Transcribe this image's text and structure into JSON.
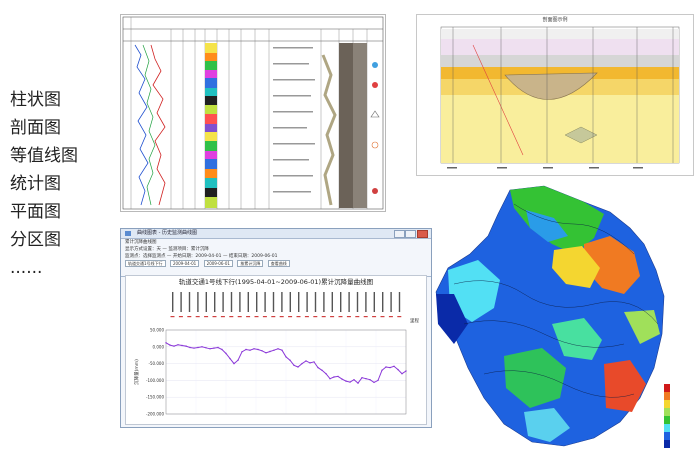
{
  "menu": {
    "items": [
      "柱状图",
      "剖面图",
      "等值线图",
      "统计图",
      "平面图",
      "分区图",
      "......"
    ]
  },
  "section_panel": {
    "title": "剖面图示例"
  },
  "window": {
    "title": "曲线图表 - 历史监测曲线图",
    "menu_label": "累计沉降曲线图",
    "tool_rows": [
      "显示方式设置：天 — 监测项目：累计沉降",
      "监测点：选择监测点 — 开始日期：2009-04-01 — 结束日期：2009-06-01"
    ],
    "controls": [
      "轨道交通1号线下行",
      "2009-04-01",
      "2009-06-01",
      "按累计沉降",
      "查看曲线"
    ],
    "tab_label": "曲线图",
    "chart_title": "轨道交通1号线下行(1995-04-01~2009-06-01)累计沉降量曲线图",
    "ylabel": "沉降量(mm)",
    "xlabel": "里程",
    "legend_small": [
      "显示"
    ]
  },
  "chart_data": {
    "type": "line",
    "title": "轨道交通1号线下行(1995-04-01~2009-06-01)累计沉降量曲线图",
    "xlabel": "里程",
    "ylabel": "沉降量(mm)",
    "ylim": [
      -200,
      50
    ],
    "yticks": [
      "50.000",
      "0.000",
      "-50.000",
      "-100.000",
      "-150.000",
      "-200.000"
    ],
    "x": [
      0,
      1,
      2,
      3,
      4,
      5,
      6,
      7,
      8,
      9,
      10,
      11,
      12,
      13,
      14,
      15,
      16,
      17,
      18,
      19,
      20,
      21,
      22,
      23,
      24,
      25,
      26,
      27,
      28,
      29,
      30,
      31,
      32,
      33,
      34,
      35,
      36,
      37,
      38,
      39,
      40,
      41,
      42,
      43,
      44,
      45,
      46,
      47,
      48,
      49,
      50,
      51,
      52,
      53,
      54,
      55,
      56,
      57,
      58,
      59,
      60
    ],
    "values": [
      12,
      5,
      2,
      6,
      4,
      2,
      -2,
      -4,
      -2,
      0,
      -3,
      -6,
      -4,
      -2,
      -8,
      -20,
      -35,
      -50,
      -40,
      -15,
      -8,
      -10,
      -6,
      -8,
      -12,
      -18,
      -14,
      -10,
      -6,
      -10,
      -30,
      -40,
      -55,
      -60,
      -50,
      -42,
      -48,
      -45,
      -62,
      -70,
      -80,
      -95,
      -90,
      -88,
      -96,
      -102,
      -105,
      -98,
      -108,
      -92,
      -95,
      -98,
      -106,
      -100,
      -70,
      -60,
      -62,
      -58,
      -68,
      -80,
      -72
    ]
  },
  "colors": {
    "line": "#8a37d8",
    "window_frame": "#dfe8f4"
  }
}
